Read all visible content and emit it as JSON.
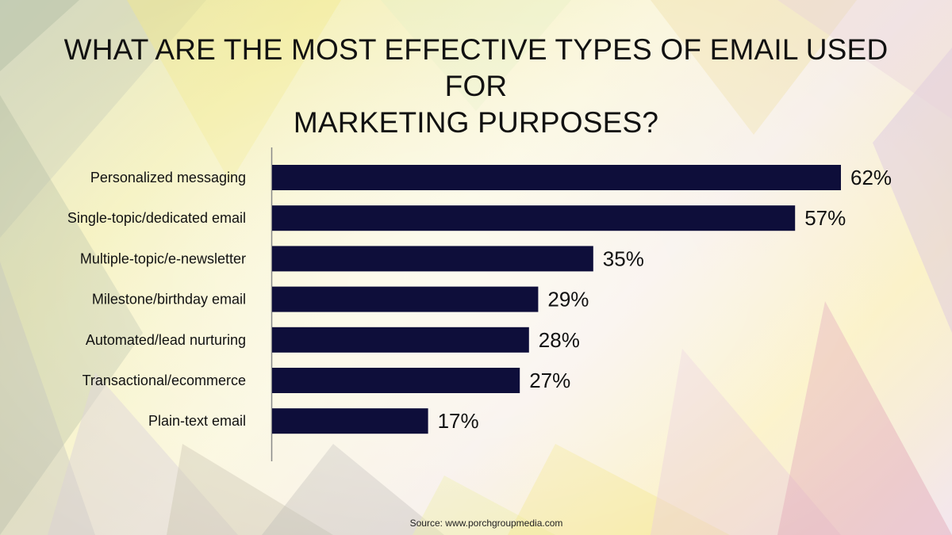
{
  "title_lines": [
    "WHAT ARE THE MOST EFFECTIVE TYPES OF EMAIL USED FOR",
    "MARKETING PURPOSES?"
  ],
  "source": "Source: www.porchgroupmedia.com",
  "colors": {
    "bar": "#0e0e3a",
    "axis": "#8a8a8a",
    "text": "#111111"
  },
  "chart_data": {
    "type": "bar",
    "orientation": "horizontal",
    "title": "WHAT ARE THE MOST EFFECTIVE TYPES OF EMAIL USED FOR MARKETING PURPOSES?",
    "categories": [
      "Personalized messaging",
      "Single-topic/dedicated email",
      "Multiple-topic/e-newsletter",
      "Milestone/birthday email",
      "Automated/lead nurturing",
      "Transactional/ecommerce",
      "Plain-text email"
    ],
    "values": [
      62,
      57,
      35,
      29,
      28,
      27,
      17
    ],
    "value_labels": [
      "62%",
      "57%",
      "35%",
      "29%",
      "28%",
      "27%",
      "17%"
    ],
    "unit": "%",
    "xlim": [
      0,
      62
    ],
    "xlabel": "",
    "ylabel": "",
    "grid": false,
    "legend": "none"
  }
}
